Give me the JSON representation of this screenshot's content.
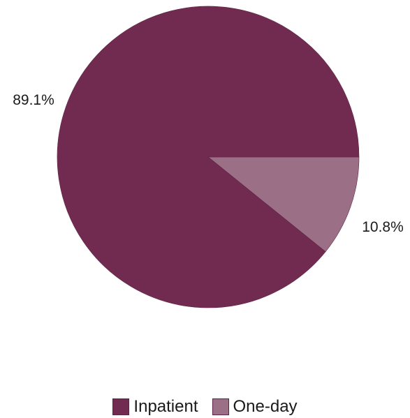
{
  "chart_data": {
    "type": "pie",
    "slices": [
      {
        "name": "Inpatient",
        "value": 89.1,
        "label": "89.1%",
        "color": "#722b50"
      },
      {
        "name": "One-day",
        "value": 10.8,
        "label": "10.8%",
        "color": "#9b7087"
      }
    ],
    "legend": {
      "position": "bottom"
    }
  }
}
